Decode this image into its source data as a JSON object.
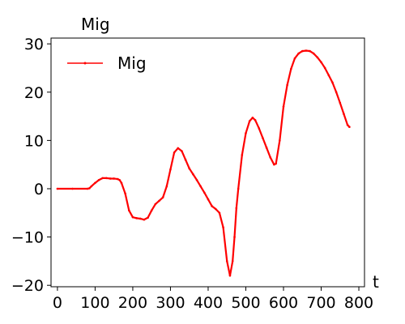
{
  "chart_data": {
    "type": "line",
    "title": "Mig",
    "xlabel": "t",
    "ylabel": "",
    "xlim": [
      -17,
      815
    ],
    "ylim": [
      -20.3,
      31.2
    ],
    "xticks": [
      0,
      100,
      200,
      300,
      400,
      500,
      600,
      700,
      800
    ],
    "yticks": [
      -20,
      -10,
      0,
      10,
      20,
      30
    ],
    "grid": false,
    "legend_placement": "top-left",
    "series": [
      {
        "name": "Mig",
        "color": "#ff0000",
        "points": [
          [
            0,
            0
          ],
          [
            40,
            0
          ],
          [
            80,
            0
          ],
          [
            85,
            0.1
          ],
          [
            90,
            0.5
          ],
          [
            100,
            1.2
          ],
          [
            110,
            1.8
          ],
          [
            120,
            2.2
          ],
          [
            130,
            2.2
          ],
          [
            140,
            2.1
          ],
          [
            150,
            2.1
          ],
          [
            160,
            2.0
          ],
          [
            165,
            1.8
          ],
          [
            170,
            1.2
          ],
          [
            180,
            -1.0
          ],
          [
            190,
            -4.5
          ],
          [
            200,
            -5.9
          ],
          [
            210,
            -6.1
          ],
          [
            220,
            -6.2
          ],
          [
            230,
            -6.4
          ],
          [
            240,
            -6.0
          ],
          [
            250,
            -4.5
          ],
          [
            260,
            -3.2
          ],
          [
            270,
            -2.5
          ],
          [
            280,
            -1.8
          ],
          [
            290,
            0.5
          ],
          [
            300,
            4.0
          ],
          [
            310,
            7.5
          ],
          [
            320,
            8.4
          ],
          [
            330,
            7.8
          ],
          [
            340,
            6.0
          ],
          [
            350,
            4.2
          ],
          [
            360,
            3.0
          ],
          [
            370,
            1.8
          ],
          [
            380,
            0.5
          ],
          [
            390,
            -0.8
          ],
          [
            400,
            -2.2
          ],
          [
            410,
            -3.6
          ],
          [
            420,
            -4.2
          ],
          [
            430,
            -5.0
          ],
          [
            440,
            -8.0
          ],
          [
            450,
            -15.0
          ],
          [
            458,
            -18.0
          ],
          [
            465,
            -15.0
          ],
          [
            470,
            -10.0
          ],
          [
            475,
            -4.0
          ],
          [
            480,
            0.0
          ],
          [
            490,
            7.0
          ],
          [
            500,
            11.5
          ],
          [
            510,
            14.0
          ],
          [
            518,
            14.7
          ],
          [
            525,
            14.2
          ],
          [
            535,
            12.5
          ],
          [
            545,
            10.5
          ],
          [
            555,
            8.5
          ],
          [
            565,
            6.5
          ],
          [
            575,
            5.0
          ],
          [
            580,
            5.2
          ],
          [
            590,
            10.0
          ],
          [
            600,
            17.0
          ],
          [
            610,
            21.5
          ],
          [
            620,
            24.8
          ],
          [
            630,
            27.0
          ],
          [
            640,
            28.0
          ],
          [
            650,
            28.5
          ],
          [
            660,
            28.6
          ],
          [
            670,
            28.5
          ],
          [
            680,
            28.0
          ],
          [
            690,
            27.2
          ],
          [
            700,
            26.2
          ],
          [
            710,
            25.0
          ],
          [
            720,
            23.5
          ],
          [
            730,
            22.0
          ],
          [
            740,
            20.0
          ],
          [
            750,
            17.8
          ],
          [
            760,
            15.5
          ],
          [
            770,
            13.2
          ],
          [
            775,
            12.8
          ]
        ]
      }
    ]
  }
}
